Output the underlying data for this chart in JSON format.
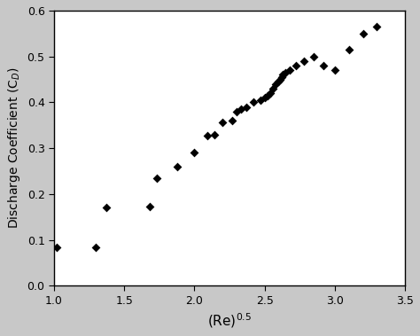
{
  "x_data": [
    1.02,
    1.3,
    1.37,
    1.68,
    1.73,
    1.88,
    2.0,
    2.09,
    2.14,
    2.2,
    2.27,
    2.3,
    2.33,
    2.37,
    2.42,
    2.47,
    2.5,
    2.52,
    2.54,
    2.56,
    2.58,
    2.6,
    2.61,
    2.62,
    2.63,
    2.65,
    2.68,
    2.72,
    2.78,
    2.85,
    2.92,
    3.0,
    3.1,
    3.2,
    3.3
  ],
  "y_data": [
    0.083,
    0.083,
    0.17,
    0.172,
    0.235,
    0.26,
    0.29,
    0.327,
    0.33,
    0.357,
    0.36,
    0.38,
    0.385,
    0.39,
    0.4,
    0.405,
    0.41,
    0.415,
    0.42,
    0.43,
    0.44,
    0.445,
    0.45,
    0.455,
    0.46,
    0.465,
    0.47,
    0.48,
    0.49,
    0.5,
    0.48,
    0.47,
    0.515,
    0.55,
    0.565
  ],
  "xlabel": "(Re)$^{0.5}$",
  "ylabel": "Discharge Coefficient (C$_D$)",
  "xlim": [
    1.0,
    3.5
  ],
  "ylim": [
    0.0,
    0.6
  ],
  "xticks": [
    1.0,
    1.5,
    2.0,
    2.5,
    3.0,
    3.5
  ],
  "yticks": [
    0.0,
    0.1,
    0.2,
    0.3,
    0.4,
    0.5,
    0.6
  ],
  "marker_color": "black",
  "marker_style": "D",
  "marker_size": 5,
  "background_color": "#ffffff",
  "figure_background": "#c8c8c8"
}
